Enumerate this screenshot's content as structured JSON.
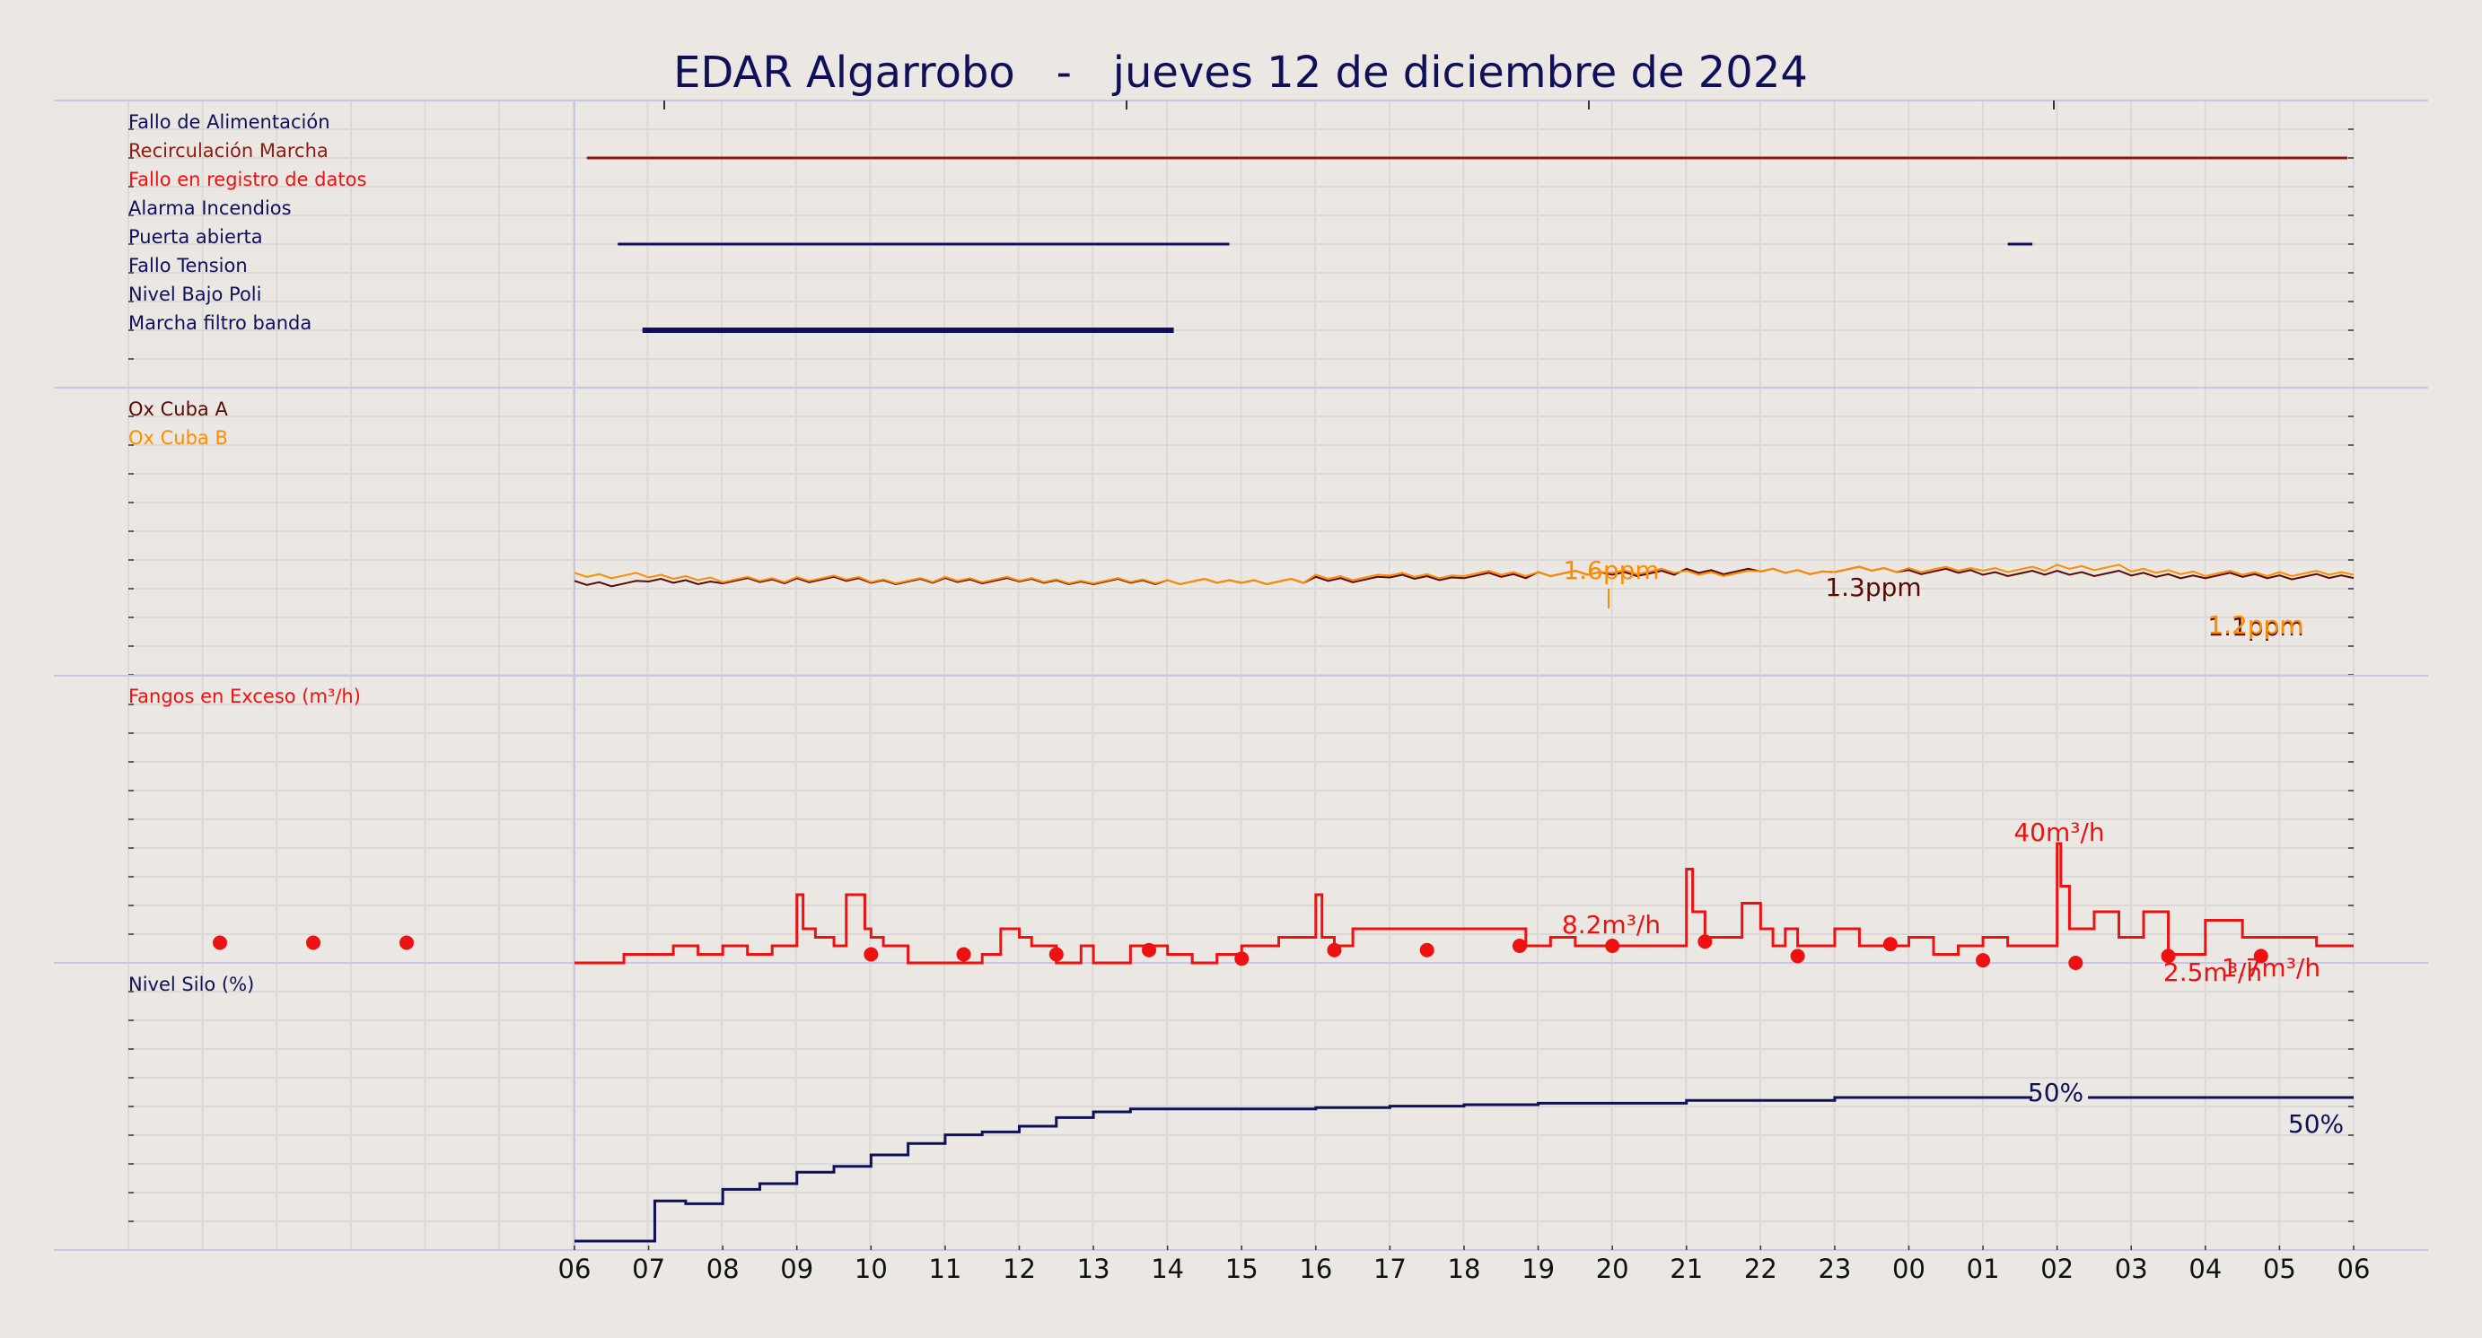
{
  "title": "EDAR Algarrobo   -   jueves 12 de diciembre de 2024",
  "colors": {
    "background": "#ebe7e2",
    "navy": "#10105a",
    "darkred": "#8b1a10",
    "red": "#ee1111",
    "orange": "#ff8c00",
    "brown": "#5a0a05",
    "separator": "#c6c6e6"
  },
  "chart_data": [
    {
      "type": "line",
      "panel": "digital-signals",
      "series": [
        {
          "name": "Fallo de Alimentación",
          "color": "#10105a",
          "segments": []
        },
        {
          "name": "Recirculación Marcha",
          "color": "#8b1a10",
          "segments": [
            [
              "06:10",
              "05:55"
            ]
          ]
        },
        {
          "name": "Fallo en registro de datos",
          "color": "#ee1111",
          "segments": []
        },
        {
          "name": "Alarma Incendios",
          "color": "#10105a",
          "segments": []
        },
        {
          "name": "Puerta abierta",
          "color": "#10105a",
          "segments": [
            [
              "06:35",
              "14:50"
            ],
            [
              "01:20",
              "01:40"
            ]
          ]
        },
        {
          "name": "Fallo Tension",
          "color": "#10105a",
          "segments": []
        },
        {
          "name": "Nivel Bajo Poli",
          "color": "#10105a",
          "segments": []
        },
        {
          "name": "Marcha filtro banda",
          "color": "#10105a",
          "segments": [
            [
              "06:55",
              "14:05"
            ]
          ]
        }
      ]
    },
    {
      "type": "line",
      "panel": "oxygen",
      "unit": "ppm",
      "x": [
        "06:00",
        "07:00",
        "08:00",
        "09:00",
        "10:00",
        "11:00",
        "12:00",
        "13:00",
        "14:00",
        "15:00",
        "16:00",
        "17:00",
        "18:00",
        "19:00",
        "20:00",
        "21:00",
        "22:00",
        "23:00",
        "00:00",
        "01:00",
        "02:00",
        "03:00",
        "04:00",
        "05:00",
        "06:00"
      ],
      "series": [
        {
          "name": "Ox Cuba A",
          "color": "#5a0a05",
          "values": [
            0.95,
            1.0,
            1.02,
            1.05,
            1.0,
            1.02,
            1.0,
            1.0,
            1.0,
            1.0,
            1.05,
            1.1,
            1.15,
            1.2,
            1.2,
            1.25,
            1.25,
            1.3,
            1.25,
            1.2,
            1.2,
            1.15,
            1.15,
            1.12,
            1.12
          ]
        },
        {
          "name": "Ox Cuba B",
          "color": "#ff8c00",
          "values": [
            1.15,
            1.1,
            1.05,
            1.08,
            1.02,
            1.05,
            1.02,
            1.02,
            1.0,
            1.0,
            1.1,
            1.15,
            1.2,
            1.2,
            1.25,
            1.2,
            1.25,
            1.3,
            1.3,
            1.3,
            1.35,
            1.25,
            1.2,
            1.2,
            1.2
          ]
        }
      ],
      "annotations": [
        {
          "text": "1.6ppm",
          "series": "Ox Cuba B"
        },
        {
          "text": "1.3ppm",
          "series": "Ox Cuba A"
        },
        {
          "text": "1.1ppm",
          "series": "Ox Cuba A"
        },
        {
          "text": "1.2ppm",
          "series": "Ox Cuba B"
        }
      ]
    },
    {
      "type": "line",
      "panel": "sludge",
      "unit": "m³/h",
      "series": [
        {
          "name": "Fangos en Exceso (m³/h)",
          "color": "#ee1111",
          "x": [
            "06:00",
            "06:40",
            "07:00",
            "07:20",
            "07:40",
            "08:00",
            "08:20",
            "08:40",
            "09:00",
            "09:05",
            "09:15",
            "09:30",
            "09:40",
            "09:55",
            "10:00",
            "10:10",
            "10:30",
            "11:00",
            "11:30",
            "11:45",
            "12:00",
            "12:10",
            "12:30",
            "12:50",
            "13:00",
            "13:30",
            "14:00",
            "14:20",
            "14:40",
            "15:00",
            "15:30",
            "16:00",
            "16:05",
            "16:15",
            "16:30",
            "17:00",
            "17:30",
            "18:00",
            "18:30",
            "18:50",
            "19:10",
            "19:30",
            "20:00",
            "20:30",
            "21:00",
            "21:05",
            "21:15",
            "21:30",
            "21:45",
            "22:00",
            "22:10",
            "22:20",
            "22:30",
            "23:00",
            "23:20",
            "23:40",
            "00:00",
            "00:20",
            "00:40",
            "01:00",
            "01:20",
            "01:40",
            "02:00",
            "02:03",
            "02:10",
            "02:30",
            "02:50",
            "03:10",
            "03:30",
            "04:00",
            "04:30",
            "05:00",
            "05:30",
            "06:00"
          ],
          "values": [
            0,
            1,
            1,
            2,
            1,
            2,
            1,
            2,
            8,
            4,
            3,
            2,
            8,
            4,
            3,
            2,
            0,
            0,
            1,
            4,
            3,
            2,
            0,
            2,
            0,
            2,
            1,
            0,
            1,
            2,
            3,
            8,
            3,
            2,
            4,
            4,
            4,
            4,
            4,
            2,
            3,
            2,
            2,
            2,
            11,
            6,
            3,
            3,
            7,
            4,
            2,
            4,
            2,
            4,
            2,
            2,
            3,
            1,
            2,
            3,
            2,
            2,
            14,
            9,
            4,
            6,
            3,
            6,
            1,
            5,
            3,
            3,
            2,
            2
          ]
        }
      ],
      "samples": [
        {
          "x": "01:15",
          "y": 1
        },
        {
          "x": "02:30",
          "y": 1
        },
        {
          "x": "03:45",
          "y": 1
        },
        {
          "x": "10:00",
          "y": 1
        },
        {
          "x": "11:15",
          "y": 1
        },
        {
          "x": "12:30",
          "y": 1
        },
        {
          "x": "13:45",
          "y": 1.5
        },
        {
          "x": "15:00",
          "y": 0.5
        },
        {
          "x": "16:15",
          "y": 1.5
        },
        {
          "x": "17:30",
          "y": 1.5
        },
        {
          "x": "18:45",
          "y": 2
        },
        {
          "x": "20:00",
          "y": 2
        },
        {
          "x": "21:15",
          "y": 2.5
        },
        {
          "x": "22:30",
          "y": 0.8
        },
        {
          "x": "23:45",
          "y": 2.2
        },
        {
          "x": "01:00",
          "y": 0.3
        },
        {
          "x": "02:15",
          "y": 0
        },
        {
          "x": "03:30",
          "y": 0.8
        },
        {
          "x": "04:45",
          "y": 0.8
        }
      ],
      "annotations": [
        {
          "text": "40m³/h"
        },
        {
          "text": "8.2m³/h"
        },
        {
          "text": "2.5m³/h"
        },
        {
          "text": "1.7m³/h"
        }
      ]
    },
    {
      "type": "line",
      "panel": "silo",
      "unit": "%",
      "series": [
        {
          "name": "Nivel Silo (%)",
          "color": "#10105a",
          "x": [
            "06:00",
            "07:00",
            "07:05",
            "07:30",
            "08:00",
            "08:30",
            "09:00",
            "09:30",
            "10:00",
            "10:30",
            "11:00",
            "11:30",
            "12:00",
            "12:30",
            "13:00",
            "13:30",
            "14:00",
            "15:00",
            "16:00",
            "17:00",
            "18:00",
            "19:00",
            "20:00",
            "21:00",
            "22:00",
            "23:00",
            "00:00",
            "01:00",
            "01:40"
          ],
          "values": [
            0,
            0,
            14,
            13,
            18,
            20,
            24,
            26,
            30,
            34,
            37,
            38,
            40,
            43,
            45,
            46,
            46,
            46,
            46.5,
            47,
            47.5,
            48,
            48,
            49,
            49,
            50,
            50,
            50,
            50
          ]
        },
        {
          "name": "Nivel Silo (%) tail",
          "color": "#10105a",
          "x": [
            "02:25",
            "06:00"
          ],
          "values": [
            50,
            50
          ]
        }
      ],
      "annotations": [
        {
          "text": "50%"
        },
        {
          "text": "50%"
        }
      ]
    }
  ],
  "x_axis": {
    "tick_labels": [
      "06",
      "07",
      "08",
      "09",
      "10",
      "11",
      "12",
      "13",
      "14",
      "15",
      "16",
      "17",
      "18",
      "19",
      "20",
      "21",
      "22",
      "23",
      "00",
      "01",
      "02",
      "03",
      "04",
      "05",
      "06"
    ]
  }
}
